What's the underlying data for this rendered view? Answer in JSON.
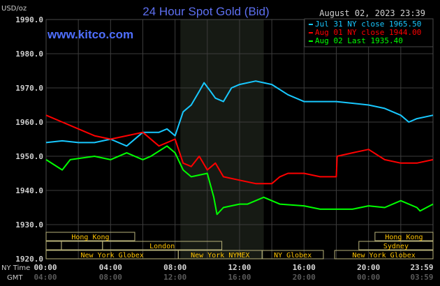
{
  "chart_data": {
    "type": "line",
    "title": "24 Hour Spot Gold (Bid)",
    "watermark": "www.kitco.com",
    "timestamp": "August 02, 2023 23:39",
    "ylabel": "USD/oz",
    "ylim": [
      1920,
      1990
    ],
    "yticks": [
      "1990.0",
      "1980.0",
      "1970.0",
      "1960.0",
      "1950.0",
      "1940.0",
      "1930.0",
      "1920.0"
    ],
    "xlim_hours": [
      0,
      24
    ],
    "x_row_labels": {
      "ny": "NY Time",
      "gmt": "GMT"
    },
    "xticks_ny": [
      "00:00",
      "04:00",
      "08:00",
      "12:00",
      "16:00",
      "20:00",
      "23:59"
    ],
    "xticks_gmt": [
      "04:00",
      "08:00",
      "12:00",
      "16:00",
      "20:00",
      "00:00",
      "03:59"
    ],
    "grid": true,
    "highlight_hours": [
      8.33,
      13.5
    ],
    "legend": [
      {
        "text": "Jul 31 NY close 1965.50",
        "color": "#18c8ff"
      },
      {
        "text": "Aug 01 NY close 1944.00",
        "color": "#ff0000"
      },
      {
        "text": "Aug 02 Last 1935.40",
        "color": "#00ff00"
      }
    ],
    "series": [
      {
        "name": "Jul 31",
        "color": "#18c8ff",
        "x": [
          0,
          1,
          2,
          3,
          4,
          5,
          6,
          7,
          7.5,
          8,
          8.5,
          9,
          9.5,
          9.8,
          10.2,
          10.5,
          11,
          11.5,
          12,
          13,
          14,
          15,
          16,
          17,
          18,
          19,
          20,
          21,
          22,
          22.5,
          23,
          24
        ],
        "y": [
          1954,
          1954.5,
          1954,
          1954,
          1955,
          1953,
          1957,
          1957,
          1958,
          1956,
          1963,
          1965,
          1969,
          1971.5,
          1969,
          1967,
          1966,
          1970,
          1971,
          1972,
          1971,
          1968,
          1966,
          1966,
          1966,
          1965.5,
          1965,
          1964,
          1962,
          1960,
          1961,
          1962
        ]
      },
      {
        "name": "Aug 01",
        "color": "#ff0000",
        "x": [
          0,
          1,
          2,
          3,
          4,
          5,
          6,
          7,
          8,
          8.5,
          9,
          9.5,
          10,
          10.5,
          11,
          12,
          13,
          14,
          14.5,
          15,
          16,
          17,
          18,
          18.05,
          19,
          20,
          21,
          22,
          23,
          24
        ],
        "y": [
          1962,
          1960,
          1958,
          1956,
          1955,
          1956,
          1957,
          1953,
          1955,
          1948,
          1947,
          1950,
          1946,
          1948,
          1944,
          1943,
          1942,
          1942,
          1944,
          1945,
          1945,
          1944,
          1944,
          1950,
          1951,
          1952,
          1949,
          1948,
          1948,
          1949
        ]
      },
      {
        "name": "Aug 02",
        "color": "#00ff00",
        "x": [
          0,
          1,
          1.5,
          3,
          4,
          5,
          6,
          6.5,
          7.5,
          8,
          8.5,
          9,
          10,
          10.4,
          10.6,
          11,
          12,
          12.5,
          13.5,
          14.5,
          16,
          17,
          19,
          20,
          21,
          22,
          23,
          23.2,
          24
        ],
        "y": [
          1949,
          1946,
          1949,
          1950,
          1949,
          1951,
          1949,
          1950,
          1953,
          1951,
          1946,
          1944,
          1945,
          1938,
          1933,
          1935,
          1936,
          1936,
          1938,
          1936,
          1935.5,
          1934.5,
          1934.5,
          1935.5,
          1935,
          1937,
          1935,
          1934,
          1936
        ]
      }
    ],
    "sessions": [
      {
        "label": "Hong Kong",
        "row": 0,
        "start": 0,
        "end": 5.5
      },
      {
        "label": "Hong Kong",
        "row": 0,
        "start": 20.4,
        "end": 24
      },
      {
        "label": "",
        "row": 1,
        "start": 0,
        "end": 0.95
      },
      {
        "label": "",
        "row": 1,
        "start": 0.95,
        "end": 3.5
      },
      {
        "label": "London",
        "row": 1,
        "start": 3.5,
        "end": 10.9
      },
      {
        "label": "Sydney",
        "row": 1,
        "start": 19.4,
        "end": 24
      },
      {
        "label": "New York Globex",
        "row": 2,
        "start": 0,
        "end": 8.2
      },
      {
        "label": "New York NYMEX",
        "row": 2,
        "start": 8.2,
        "end": 13.4
      },
      {
        "label": "NY Globex",
        "row": 2,
        "start": 13.4,
        "end": 17.2
      },
      {
        "label": "New York Globex",
        "row": 2,
        "start": 17.9,
        "end": 24
      }
    ]
  }
}
